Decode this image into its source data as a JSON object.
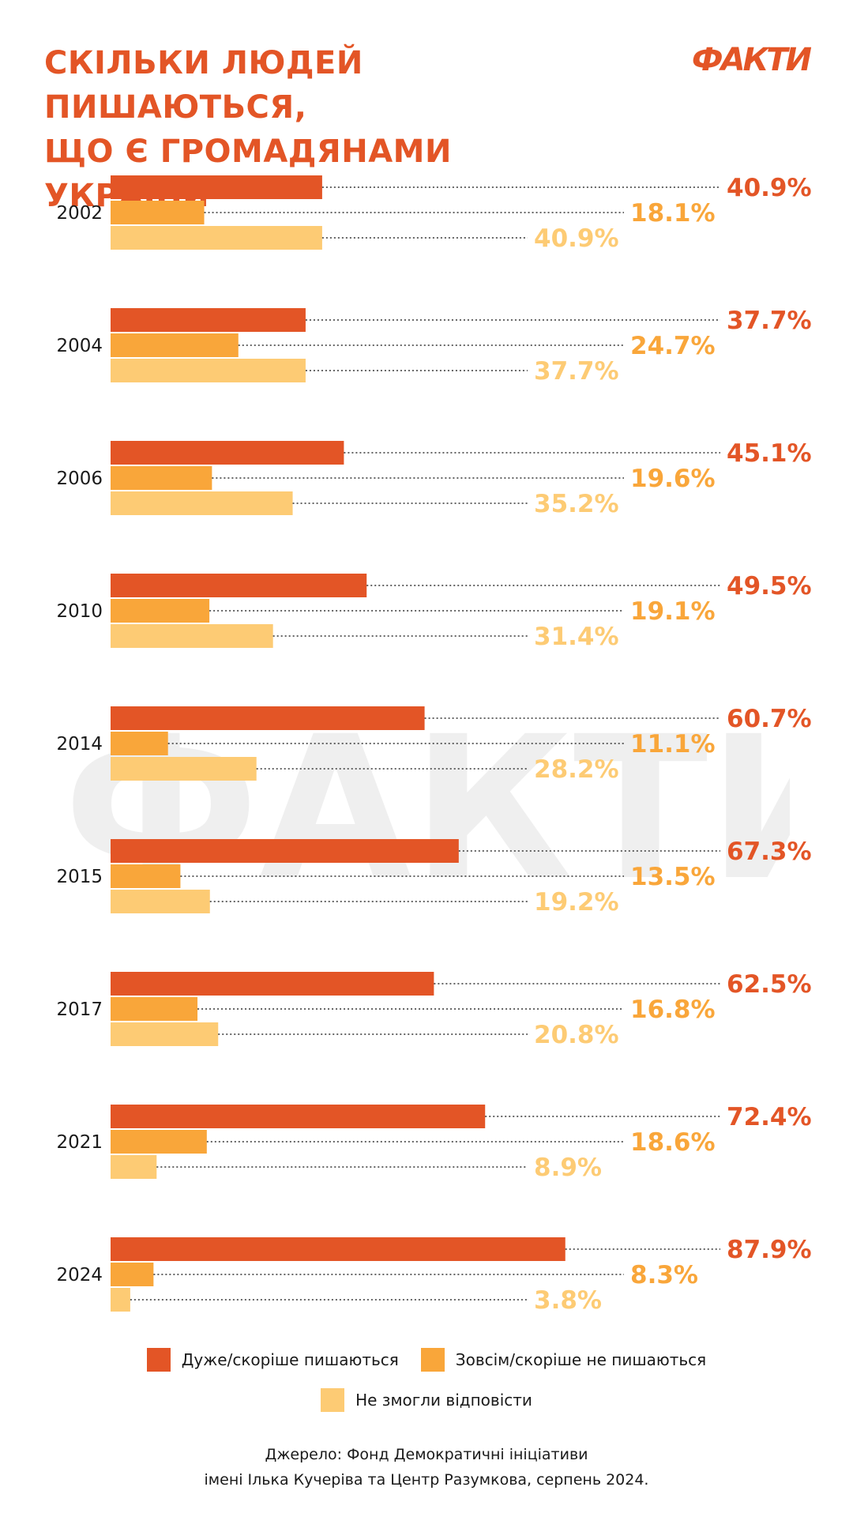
{
  "title": {
    "line1": "СКІЛЬКИ ЛЮДЕЙ ПИШАЮТЬСЯ,",
    "line2": "ЩО Є ГРОМАДЯНАМИ УКРАЇНИ"
  },
  "logo": "ФАКТИ",
  "watermark": "ФАКТИ",
  "colors": {
    "accent": "#E35526",
    "proud": "#E35526",
    "not_proud": "#F9A63A",
    "no_answer": "#FDCB74"
  },
  "chart_data": {
    "type": "bar",
    "orientation": "horizontal",
    "categories": [
      "2002",
      "2004",
      "2006",
      "2010",
      "2014",
      "2015",
      "2017",
      "2021",
      "2024"
    ],
    "unit": "%",
    "xlim": [
      0,
      100
    ],
    "grid": false,
    "legend_position": "bottom",
    "series": [
      {
        "name": "Дуже/скоріше пишаються",
        "color": "#E35526",
        "values": [
          40.9,
          37.7,
          45.1,
          49.5,
          60.7,
          67.3,
          62.5,
          72.4,
          87.9
        ]
      },
      {
        "name": "Зовсім/скоріше не пишаються",
        "color": "#F9A63A",
        "values": [
          18.1,
          24.7,
          19.6,
          19.1,
          11.1,
          13.5,
          16.8,
          18.6,
          8.3
        ]
      },
      {
        "name": "Не змогли відповісти",
        "color": "#FDCB74",
        "values": [
          40.9,
          37.7,
          35.2,
          31.4,
          28.2,
          19.2,
          20.8,
          8.9,
          3.8
        ]
      }
    ],
    "value_labels": [
      [
        "40.9%",
        "18.1%",
        "40.9%"
      ],
      [
        "37.7%",
        "24.7%",
        "37.7%"
      ],
      [
        "45.1%",
        "19.6%",
        "35.2%"
      ],
      [
        "49.5%",
        "19.1%",
        "31.4%"
      ],
      [
        "60.7%",
        "11.1%",
        "28.2%"
      ],
      [
        "67.3%",
        "13.5%",
        "19.2%"
      ],
      [
        "62.5%",
        "16.8%",
        "20.8%"
      ],
      [
        "72.4%",
        "18.6%",
        "8.9%"
      ],
      [
        "87.9%",
        "8.3%",
        "3.8%"
      ]
    ]
  },
  "source": {
    "line1": "Джерело: Фонд Демократичні ініціативи",
    "line2": "імені Ілька Кучеріва та Центр Разумкова, серпень 2024."
  }
}
